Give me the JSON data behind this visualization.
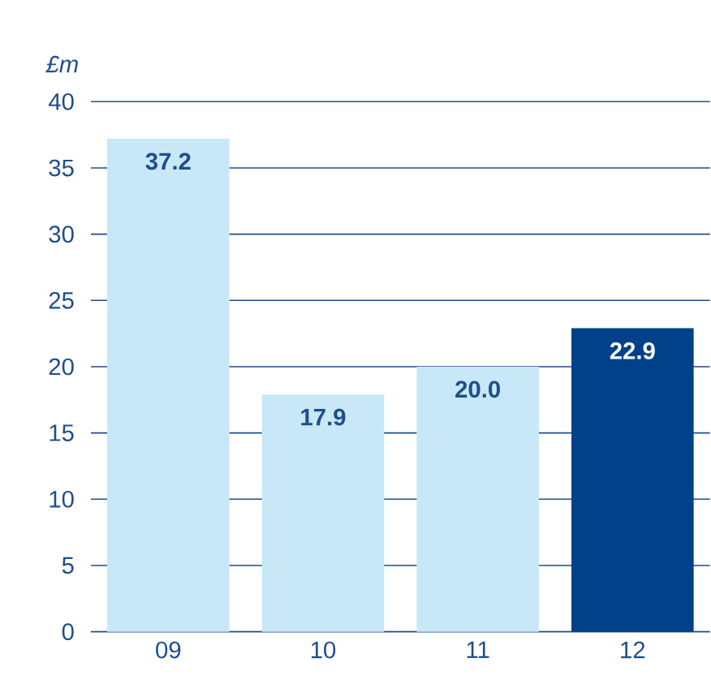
{
  "chart_data": {
    "type": "bar",
    "ylabel": "£m",
    "categories": [
      "09",
      "10",
      "11",
      "12"
    ],
    "values": [
      37.2,
      17.9,
      20.0,
      22.9
    ],
    "value_labels": [
      "37.2",
      "17.9",
      "20.0",
      "22.9"
    ],
    "colors": [
      "#c8e8f8",
      "#c8e8f8",
      "#c8e8f8",
      "#00418a"
    ],
    "ylim": [
      0,
      40
    ],
    "yticks": [
      0,
      5,
      10,
      15,
      20,
      25,
      30,
      35,
      40
    ],
    "grid": "y"
  }
}
